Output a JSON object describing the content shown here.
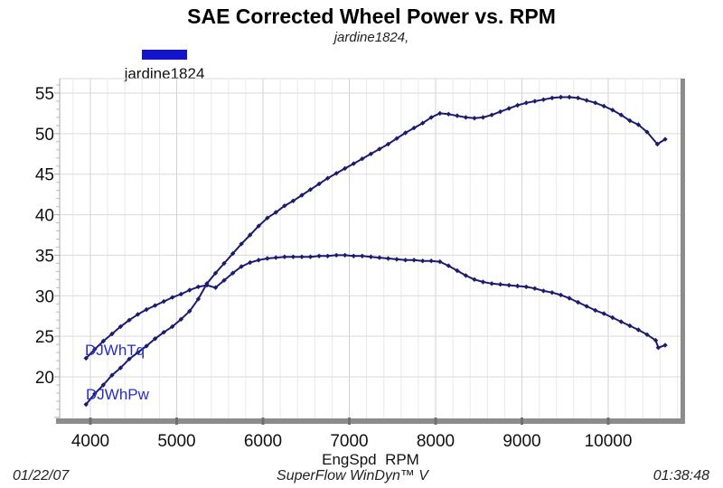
{
  "header": {
    "title": "SAE Corrected Wheel Power vs. RPM",
    "subtitle": "jardine1824,"
  },
  "legend": {
    "label": "jardine1824",
    "swatch_color": "#1414cc",
    "position": "top-left"
  },
  "footer": {
    "date": "01/22/07",
    "software": "SuperFlow WinDyn™ V",
    "time": "01:38:48"
  },
  "colors": {
    "curve": "#1c1c6e",
    "series_label": "#2a2ec0",
    "grid_minor_v": "#e9e9e9",
    "grid_major_v": "#d2d2d2",
    "grid_h": "#dadada",
    "axis_line": "#aaaaaa",
    "minor_tick": "#bbbbbb",
    "axis_bar": "#8c8c8c",
    "axis_notch": "#6f6f6f",
    "tick_text": "#111111"
  },
  "chart_data": {
    "type": "line",
    "title": "SAE Corrected Wheel Power vs. RPM",
    "subtitle": "jardine1824,",
    "xlabel": "EngSpd  RPM",
    "ylabel": "",
    "xlim": [
      3644,
      10880
    ],
    "ylim": [
      14.5,
      56.8
    ],
    "x_major_ticks": [
      4000,
      5000,
      6000,
      7000,
      8000,
      9000,
      10000
    ],
    "x_minor_step": 200,
    "y_major_ticks": [
      20,
      25,
      30,
      35,
      40,
      45,
      50,
      55
    ],
    "y_minor_step": 1,
    "grid": "horizontal major lines every 5; vertical minor lines every 200 RPM",
    "legend_position": "top-left",
    "marker": "diamond",
    "series": [
      {
        "name": "DJWhTq",
        "label": "DJWhTq",
        "points": [
          [
            3950,
            22.3
          ],
          [
            4050,
            23.4
          ],
          [
            4150,
            24.4
          ],
          [
            4250,
            25.3
          ],
          [
            4350,
            26.2
          ],
          [
            4450,
            27.0
          ],
          [
            4550,
            27.7
          ],
          [
            4650,
            28.3
          ],
          [
            4750,
            28.8
          ],
          [
            4850,
            29.3
          ],
          [
            4950,
            29.8
          ],
          [
            5050,
            30.2
          ],
          [
            5150,
            30.7
          ],
          [
            5250,
            31.1
          ],
          [
            5350,
            31.3
          ],
          [
            5450,
            31.0
          ],
          [
            5550,
            31.9
          ],
          [
            5650,
            32.8
          ],
          [
            5750,
            33.6
          ],
          [
            5850,
            34.1
          ],
          [
            5950,
            34.4
          ],
          [
            6050,
            34.6
          ],
          [
            6150,
            34.7
          ],
          [
            6250,
            34.8
          ],
          [
            6350,
            34.8
          ],
          [
            6450,
            34.8
          ],
          [
            6550,
            34.8
          ],
          [
            6650,
            34.9
          ],
          [
            6750,
            34.9
          ],
          [
            6850,
            35.0
          ],
          [
            6950,
            35.0
          ],
          [
            7050,
            34.9
          ],
          [
            7150,
            34.9
          ],
          [
            7250,
            34.8
          ],
          [
            7350,
            34.7
          ],
          [
            7450,
            34.6
          ],
          [
            7550,
            34.5
          ],
          [
            7650,
            34.4
          ],
          [
            7750,
            34.4
          ],
          [
            7850,
            34.3
          ],
          [
            7950,
            34.3
          ],
          [
            8050,
            34.2
          ],
          [
            8150,
            33.7
          ],
          [
            8250,
            33.1
          ],
          [
            8350,
            32.5
          ],
          [
            8450,
            32.0
          ],
          [
            8550,
            31.7
          ],
          [
            8650,
            31.5
          ],
          [
            8750,
            31.4
          ],
          [
            8850,
            31.3
          ],
          [
            8950,
            31.2
          ],
          [
            9050,
            31.1
          ],
          [
            9150,
            30.9
          ],
          [
            9250,
            30.6
          ],
          [
            9350,
            30.4
          ],
          [
            9450,
            30.1
          ],
          [
            9550,
            29.7
          ],
          [
            9650,
            29.2
          ],
          [
            9750,
            28.7
          ],
          [
            9850,
            28.2
          ],
          [
            9950,
            27.8
          ],
          [
            10050,
            27.3
          ],
          [
            10150,
            26.8
          ],
          [
            10250,
            26.3
          ],
          [
            10350,
            25.8
          ],
          [
            10450,
            25.2
          ],
          [
            10550,
            24.5
          ],
          [
            10580,
            23.6
          ],
          [
            10660,
            23.9
          ]
        ]
      },
      {
        "name": "DJWhPw",
        "label": "DJWhPw",
        "points": [
          [
            3950,
            16.6
          ],
          [
            4050,
            17.9
          ],
          [
            4150,
            19.0
          ],
          [
            4250,
            20.2
          ],
          [
            4350,
            21.1
          ],
          [
            4450,
            22.2
          ],
          [
            4550,
            23.0
          ],
          [
            4650,
            23.8
          ],
          [
            4750,
            24.7
          ],
          [
            4850,
            25.5
          ],
          [
            4950,
            26.2
          ],
          [
            5050,
            27.1
          ],
          [
            5150,
            28.1
          ],
          [
            5250,
            29.6
          ],
          [
            5350,
            31.5
          ],
          [
            5450,
            32.8
          ],
          [
            5550,
            34.0
          ],
          [
            5650,
            35.2
          ],
          [
            5750,
            36.4
          ],
          [
            5850,
            37.5
          ],
          [
            5950,
            38.6
          ],
          [
            6050,
            39.6
          ],
          [
            6150,
            40.3
          ],
          [
            6250,
            41.1
          ],
          [
            6350,
            41.7
          ],
          [
            6450,
            42.4
          ],
          [
            6550,
            43.1
          ],
          [
            6650,
            43.8
          ],
          [
            6750,
            44.5
          ],
          [
            6850,
            45.1
          ],
          [
            6950,
            45.7
          ],
          [
            7050,
            46.3
          ],
          [
            7150,
            46.9
          ],
          [
            7250,
            47.5
          ],
          [
            7350,
            48.1
          ],
          [
            7450,
            48.7
          ],
          [
            7550,
            49.4
          ],
          [
            7650,
            50.1
          ],
          [
            7750,
            50.7
          ],
          [
            7850,
            51.3
          ],
          [
            7950,
            52.0
          ],
          [
            8050,
            52.5
          ],
          [
            8150,
            52.4
          ],
          [
            8250,
            52.2
          ],
          [
            8350,
            52.0
          ],
          [
            8450,
            51.9
          ],
          [
            8550,
            52.0
          ],
          [
            8650,
            52.3
          ],
          [
            8750,
            52.7
          ],
          [
            8850,
            53.1
          ],
          [
            8950,
            53.5
          ],
          [
            9050,
            53.8
          ],
          [
            9150,
            54.0
          ],
          [
            9250,
            54.2
          ],
          [
            9350,
            54.4
          ],
          [
            9450,
            54.5
          ],
          [
            9550,
            54.5
          ],
          [
            9650,
            54.4
          ],
          [
            9750,
            54.1
          ],
          [
            9850,
            53.8
          ],
          [
            9950,
            53.4
          ],
          [
            10050,
            52.9
          ],
          [
            10150,
            52.3
          ],
          [
            10250,
            51.6
          ],
          [
            10350,
            51.1
          ],
          [
            10450,
            50.2
          ],
          [
            10570,
            48.7
          ],
          [
            10660,
            49.3
          ]
        ]
      }
    ]
  }
}
